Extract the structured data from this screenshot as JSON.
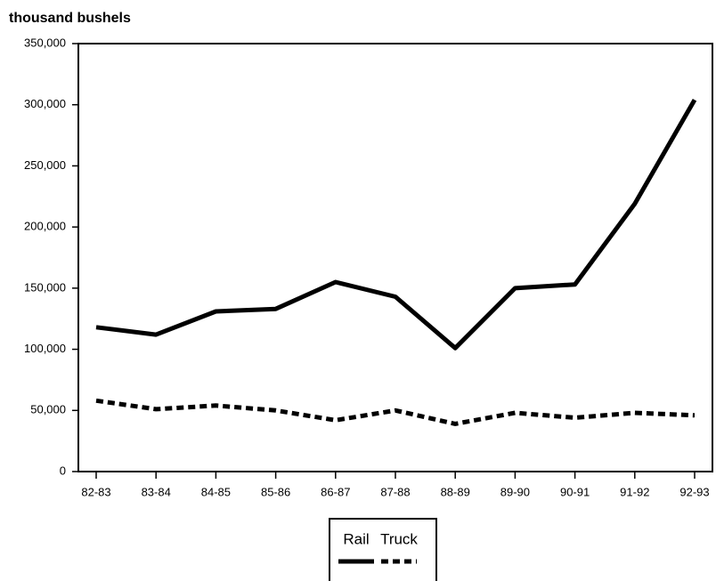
{
  "chart_data": {
    "type": "line",
    "y_axis_label": "thousand bushels",
    "categories": [
      "82-83",
      "83-84",
      "84-85",
      "85-86",
      "86-87",
      "87-88",
      "88-89",
      "89-90",
      "90-91",
      "91-92",
      "92-93"
    ],
    "series": [
      {
        "name": "Rail",
        "color": "#000000",
        "style": "solid",
        "values": [
          118000,
          112000,
          131000,
          133000,
          155000,
          143000,
          101000,
          150000,
          153000,
          219000,
          304000
        ]
      },
      {
        "name": "Truck",
        "color": "#000000",
        "style": "dashed",
        "values": [
          58000,
          51000,
          54000,
          50000,
          42000,
          50000,
          39000,
          48000,
          44000,
          48000,
          46000
        ]
      }
    ],
    "ylim": [
      0,
      350000
    ],
    "yticks": [
      0,
      {
        "value": 50000,
        "label": "50,000"
      },
      {
        "value": 100000,
        "label": "100,000"
      },
      {
        "value": 150000,
        "label": "150,000"
      },
      {
        "value": 200000,
        "label": "200,000"
      },
      {
        "value": 250000,
        "label": "250,000"
      },
      {
        "value": 300000,
        "label": "300,000"
      },
      {
        "value": 350000,
        "label": "350,000"
      }
    ],
    "grid": false,
    "legend": "bottom"
  }
}
